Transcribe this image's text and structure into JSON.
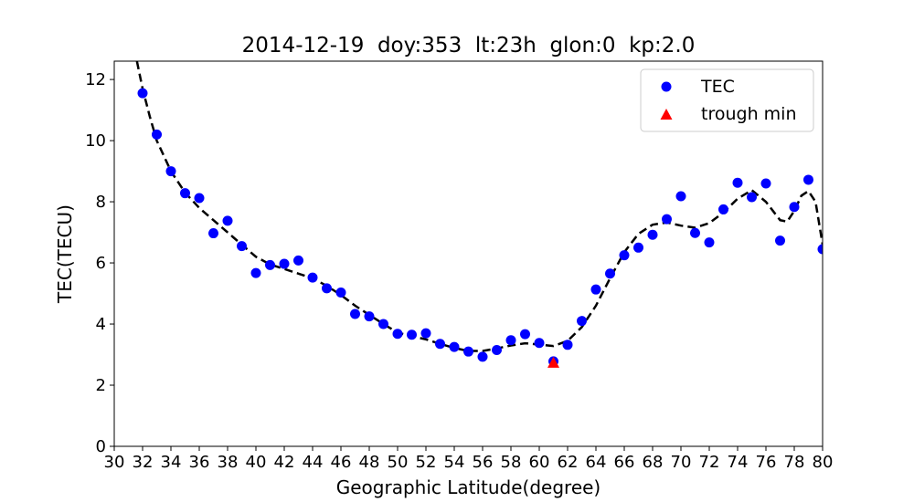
{
  "chart_data": {
    "type": "scatter",
    "title": "2014-12-19  doy:353  lt:23h  glon:0  kp:2.0",
    "xlabel": "Geographic Latitude(degree)",
    "ylabel": "TEC(TECU)",
    "xlim": [
      30,
      80
    ],
    "ylim": [
      0,
      12.6
    ],
    "xticks": [
      30,
      32,
      34,
      36,
      38,
      40,
      42,
      44,
      46,
      48,
      50,
      52,
      54,
      56,
      58,
      60,
      62,
      64,
      66,
      68,
      70,
      72,
      74,
      76,
      78,
      80
    ],
    "yticks": [
      0,
      2,
      4,
      6,
      8,
      10,
      12
    ],
    "grid": false,
    "legend_position": "top-right",
    "series": [
      {
        "name": "TEC",
        "kind": "scatter",
        "color": "#0000ff",
        "marker": "circle",
        "x": [
          32,
          33,
          34,
          35,
          36,
          37,
          38,
          39,
          40,
          41,
          42,
          43,
          44,
          45,
          46,
          47,
          48,
          49,
          50,
          51,
          52,
          53,
          54,
          55,
          56,
          57,
          58,
          59,
          60,
          61,
          62,
          63,
          64,
          65,
          66,
          67,
          68,
          69,
          70,
          71,
          72,
          73,
          74,
          75,
          76,
          77,
          78,
          79,
          80
        ],
        "y": [
          11.55,
          10.2,
          9.0,
          8.28,
          8.12,
          6.97,
          7.38,
          6.55,
          5.67,
          5.93,
          5.97,
          6.08,
          5.52,
          5.17,
          5.03,
          4.33,
          4.25,
          4.0,
          3.68,
          3.65,
          3.7,
          3.35,
          3.25,
          3.1,
          2.93,
          3.15,
          3.47,
          3.67,
          3.38,
          2.78,
          3.32,
          4.1,
          5.13,
          5.65,
          6.25,
          6.5,
          6.92,
          7.43,
          8.18,
          6.98,
          6.67,
          7.75,
          8.62,
          8.15,
          8.6,
          6.73,
          7.83,
          8.72,
          6.45
        ]
      },
      {
        "name": "",
        "kind": "line",
        "color": "#000000",
        "style": "dashed",
        "x": [
          31.6,
          32,
          32.5,
          33,
          33.5,
          34,
          35,
          36,
          37,
          38,
          39,
          40,
          41,
          42,
          43,
          44,
          45,
          46,
          47,
          48,
          49,
          50,
          51,
          52,
          53,
          54,
          55,
          56,
          57,
          58,
          59,
          60,
          61,
          62,
          63,
          64,
          65,
          66,
          67,
          68,
          69,
          70,
          71,
          72,
          73,
          74,
          75,
          76,
          77,
          77.5,
          78,
          78.5,
          79,
          79.5,
          80
        ],
        "y": [
          12.6,
          11.7,
          10.8,
          10.0,
          9.5,
          9.0,
          8.3,
          7.8,
          7.4,
          7.0,
          6.6,
          6.2,
          5.95,
          5.8,
          5.65,
          5.5,
          5.25,
          4.95,
          4.6,
          4.3,
          4.0,
          3.72,
          3.6,
          3.5,
          3.35,
          3.22,
          3.12,
          3.12,
          3.2,
          3.3,
          3.37,
          3.33,
          3.28,
          3.45,
          3.9,
          4.6,
          5.5,
          6.35,
          6.95,
          7.25,
          7.32,
          7.22,
          7.15,
          7.3,
          7.65,
          8.1,
          8.38,
          8.0,
          7.4,
          7.35,
          7.7,
          8.2,
          8.35,
          8.0,
          6.6
        ]
      },
      {
        "name": "trough min",
        "kind": "scatter",
        "color": "#ff0000",
        "marker": "triangle",
        "x": [
          61
        ],
        "y": [
          2.72
        ]
      }
    ]
  },
  "legend": {
    "items": [
      {
        "label": "TEC"
      },
      {
        "label": "trough min"
      }
    ]
  }
}
